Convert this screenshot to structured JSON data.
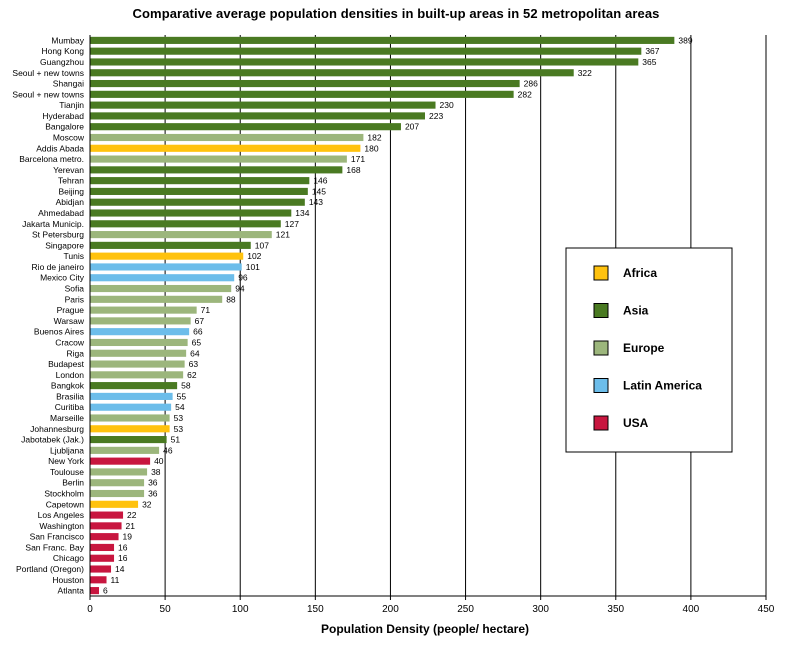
{
  "chart_data": {
    "type": "bar",
    "orientation": "horizontal",
    "title": "Comparative average population densities in built-up areas  in 52 metropolitan areas",
    "xlabel": "Population Density (people/ hectare)",
    "ylabel": "",
    "xlim": [
      0,
      450
    ],
    "xticks": [
      0,
      50,
      100,
      150,
      200,
      250,
      300,
      350,
      400,
      450
    ],
    "grid": "vertical",
    "legend_position": "right",
    "region_colors": {
      "Africa": "#FFC20E",
      "Asia": "#4A7A22",
      "Europe": "#9CB67C",
      "Latin America": "#6CBDEA",
      "USA": "#C8163F"
    },
    "legend": [
      {
        "label": "Africa",
        "region": "Africa"
      },
      {
        "label": "Asia",
        "region": "Asia"
      },
      {
        "label": "Europe",
        "region": "Europe"
      },
      {
        "label": "Latin America",
        "region": "Latin America"
      },
      {
        "label": "USA",
        "region": "USA"
      }
    ],
    "bars": [
      {
        "city": "Mumbay",
        "value": 389,
        "region": "Asia"
      },
      {
        "city": "Hong Kong",
        "value": 367,
        "region": "Asia"
      },
      {
        "city": "Guangzhou",
        "value": 365,
        "region": "Asia"
      },
      {
        "city": "Seoul + new towns",
        "value": 322,
        "region": "Asia"
      },
      {
        "city": "Shangai",
        "value": 286,
        "region": "Asia"
      },
      {
        "city": "Seoul + new towns",
        "value": 282,
        "region": "Asia"
      },
      {
        "city": "Tianjin",
        "value": 230,
        "region": "Asia"
      },
      {
        "city": "Hyderabad",
        "value": 223,
        "region": "Asia"
      },
      {
        "city": "Bangalore",
        "value": 207,
        "region": "Asia"
      },
      {
        "city": "Moscow",
        "value": 182,
        "region": "Europe"
      },
      {
        "city": "Addis Abada",
        "value": 180,
        "region": "Africa"
      },
      {
        "city": "Barcelona metro.",
        "value": 171,
        "region": "Europe"
      },
      {
        "city": "Yerevan",
        "value": 168,
        "region": "Asia"
      },
      {
        "city": "Tehran",
        "value": 146,
        "region": "Asia"
      },
      {
        "city": "Beijing",
        "value": 145,
        "region": "Asia"
      },
      {
        "city": "Abidjan",
        "value": 143,
        "region": "Asia"
      },
      {
        "city": "Ahmedabad",
        "value": 134,
        "region": "Asia"
      },
      {
        "city": "Jakarta Municip.",
        "value": 127,
        "region": "Asia"
      },
      {
        "city": "St Petersburg",
        "value": 121,
        "region": "Europe"
      },
      {
        "city": "Singapore",
        "value": 107,
        "region": "Asia"
      },
      {
        "city": "Tunis",
        "value": 102,
        "region": "Africa"
      },
      {
        "city": "Rio de janeiro",
        "value": 101,
        "region": "Latin America"
      },
      {
        "city": "Mexico City",
        "value": 96,
        "region": "Latin America"
      },
      {
        "city": "Sofia",
        "value": 94,
        "region": "Europe"
      },
      {
        "city": "Paris",
        "value": 88,
        "region": "Europe"
      },
      {
        "city": "Prague",
        "value": 71,
        "region": "Europe"
      },
      {
        "city": "Warsaw",
        "value": 67,
        "region": "Europe"
      },
      {
        "city": "Buenos Aires",
        "value": 66,
        "region": "Latin America"
      },
      {
        "city": "Cracow",
        "value": 65,
        "region": "Europe"
      },
      {
        "city": "Riga",
        "value": 64,
        "region": "Europe"
      },
      {
        "city": "Budapest",
        "value": 63,
        "region": "Europe"
      },
      {
        "city": "London",
        "value": 62,
        "region": "Europe"
      },
      {
        "city": "Bangkok",
        "value": 58,
        "region": "Asia"
      },
      {
        "city": "Brasilia",
        "value": 55,
        "region": "Latin America"
      },
      {
        "city": "Curitiba",
        "value": 54,
        "region": "Latin America"
      },
      {
        "city": "Marseille",
        "value": 53,
        "region": "Europe"
      },
      {
        "city": "Johannesburg",
        "value": 53,
        "region": "Africa"
      },
      {
        "city": "Jabotabek (Jak.)",
        "value": 51,
        "region": "Asia"
      },
      {
        "city": "Ljubljana",
        "value": 46,
        "region": "Europe"
      },
      {
        "city": "New York",
        "value": 40,
        "region": "USA"
      },
      {
        "city": "Toulouse",
        "value": 38,
        "region": "Europe"
      },
      {
        "city": "Berlin",
        "value": 36,
        "region": "Europe"
      },
      {
        "city": "Stockholm",
        "value": 36,
        "region": "Europe"
      },
      {
        "city": "Capetown",
        "value": 32,
        "region": "Africa"
      },
      {
        "city": "Los Angeles",
        "value": 22,
        "region": "USA"
      },
      {
        "city": "Washington",
        "value": 21,
        "region": "USA"
      },
      {
        "city": "San Francisco",
        "value": 19,
        "region": "USA"
      },
      {
        "city": "San Franc. Bay",
        "value": 16,
        "region": "USA"
      },
      {
        "city": "Chicago",
        "value": 16,
        "region": "USA"
      },
      {
        "city": "Portland (Oregon)",
        "value": 14,
        "region": "USA"
      },
      {
        "city": "Houston",
        "value": 11,
        "region": "USA"
      },
      {
        "city": "Atlanta",
        "value": 6,
        "region": "USA"
      }
    ]
  }
}
